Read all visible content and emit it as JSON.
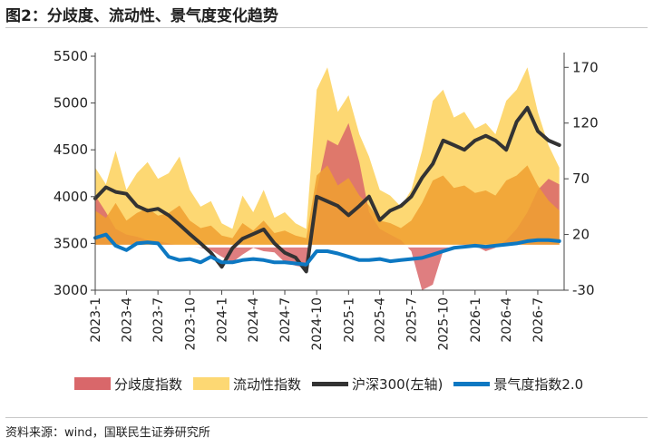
{
  "title": "图2：分歧度、流动性、景气度变化趋势",
  "source": "资料来源：wind，国联民生证券研究所",
  "colors": {
    "divergence": "#d9676a",
    "divergence_high": "#e8a0a3",
    "liquidity": "#fdd873",
    "liquidity_inner": "#f0a030",
    "hs300": "#333333",
    "prosperity": "#0d78c2"
  },
  "chart_data": {
    "type": "area",
    "x_tick_labels": [
      "2023-1",
      "2023-4",
      "2023-7",
      "2023-10",
      "2024-1",
      "2024-4",
      "2024-7",
      "2024-10",
      "2025-1",
      "2025-4",
      "2025-7",
      "2025-10",
      "2026-1",
      "2026-4",
      "2026-7"
    ],
    "x_range": [
      "2023-01-01",
      "2026-09-15"
    ],
    "y_left": {
      "ticks": [
        3000,
        3500,
        4000,
        4500,
        5000,
        5500
      ],
      "range": [
        3000,
        5500
      ]
    },
    "y_right": {
      "ticks": [
        -30,
        20,
        70,
        120,
        170
      ],
      "range": [
        -30,
        180
      ],
      "baseline": 10
    },
    "series": [
      {
        "name": "分歧度指数",
        "kind": "area",
        "axis": "right",
        "dates": [
          "2023-01",
          "2023-02",
          "2023-03",
          "2023-04",
          "2023-05",
          "2023-06",
          "2023-07",
          "2023-08",
          "2023-09",
          "2023-10",
          "2023-11",
          "2023-12",
          "2024-01",
          "2024-02",
          "2024-03",
          "2024-04",
          "2024-05",
          "2024-06",
          "2024-07",
          "2024-08",
          "2024-09",
          "2024-10",
          "2024-11",
          "2024-12",
          "2025-01",
          "2025-02",
          "2025-03",
          "2025-04",
          "2025-05",
          "2025-06",
          "2025-07",
          "2025-08",
          "2025-09",
          "2025-10",
          "2025-11",
          "2025-12",
          "2026-01",
          "2026-02",
          "2026-03",
          "2026-04",
          "2026-05",
          "2026-06",
          "2026-07",
          "2026-08",
          "2026-09"
        ],
        "values": [
          55,
          40,
          25,
          20,
          18,
          15,
          14,
          12,
          10,
          9,
          8,
          6,
          0,
          -5,
          2,
          8,
          5,
          4,
          -5,
          -8,
          -10,
          60,
          105,
          100,
          120,
          85,
          40,
          25,
          20,
          15,
          5,
          -30,
          -25,
          5,
          10,
          12,
          10,
          5,
          8,
          15,
          25,
          40,
          60,
          70,
          65
        ]
      },
      {
        "name": "流动性指数",
        "kind": "area",
        "axis": "right",
        "dates": [
          "2023-01",
          "2023-02",
          "2023-03",
          "2023-04",
          "2023-05",
          "2023-06",
          "2023-07",
          "2023-08",
          "2023-09",
          "2023-10",
          "2023-11",
          "2023-12",
          "2024-01",
          "2024-02",
          "2024-03",
          "2024-04",
          "2024-05",
          "2024-06",
          "2024-07",
          "2024-08",
          "2024-09",
          "2024-10",
          "2024-11",
          "2024-12",
          "2025-01",
          "2025-02",
          "2025-03",
          "2025-04",
          "2025-05",
          "2025-06",
          "2025-07",
          "2025-08",
          "2025-09",
          "2025-10",
          "2025-11",
          "2025-12",
          "2026-01",
          "2026-02",
          "2026-03",
          "2026-04",
          "2026-05",
          "2026-06",
          "2026-07",
          "2026-08",
          "2026-09"
        ],
        "values": [
          80,
          65,
          95,
          60,
          75,
          85,
          70,
          75,
          90,
          60,
          45,
          50,
          30,
          25,
          55,
          40,
          60,
          35,
          40,
          30,
          25,
          150,
          170,
          130,
          145,
          110,
          90,
          60,
          55,
          45,
          60,
          95,
          140,
          150,
          125,
          130,
          115,
          120,
          110,
          140,
          150,
          170,
          130,
          100,
          80
        ]
      },
      {
        "name": "沪深300(左轴)",
        "kind": "line",
        "axis": "left",
        "dates": [
          "2023-01",
          "2023-02",
          "2023-03",
          "2023-04",
          "2023-05",
          "2023-06",
          "2023-07",
          "2023-08",
          "2023-09",
          "2023-10",
          "2023-11",
          "2023-12",
          "2024-01",
          "2024-02",
          "2024-03",
          "2024-04",
          "2024-05",
          "2024-06",
          "2024-07",
          "2024-08",
          "2024-09",
          "2024-10",
          "2024-11",
          "2024-12",
          "2025-01",
          "2025-02",
          "2025-03",
          "2025-04",
          "2025-05",
          "2025-06",
          "2025-07",
          "2025-08",
          "2025-09",
          "2025-10",
          "2025-11",
          "2025-12",
          "2026-01",
          "2026-02",
          "2026-03",
          "2026-04",
          "2026-05",
          "2026-06",
          "2026-07",
          "2026-08",
          "2026-09"
        ],
        "values": [
          3980,
          4100,
          4050,
          4030,
          3900,
          3850,
          3870,
          3800,
          3700,
          3600,
          3500,
          3400,
          3250,
          3450,
          3550,
          3600,
          3650,
          3500,
          3400,
          3350,
          3200,
          4000,
          3950,
          3900,
          3800,
          3900,
          4000,
          3750,
          3850,
          3900,
          4000,
          4200,
          4350,
          4600,
          4550,
          4500,
          4600,
          4650,
          4600,
          4500,
          4800,
          4950,
          4700,
          4600,
          4550
        ]
      },
      {
        "name": "景气度指数2.0",
        "kind": "line",
        "axis": "right",
        "dates": [
          "2023-01",
          "2023-02",
          "2023-03",
          "2023-04",
          "2023-05",
          "2023-06",
          "2023-07",
          "2023-08",
          "2023-09",
          "2023-10",
          "2023-11",
          "2023-12",
          "2024-01",
          "2024-02",
          "2024-03",
          "2024-04",
          "2024-05",
          "2024-06",
          "2024-07",
          "2024-08",
          "2024-09",
          "2024-10",
          "2024-11",
          "2024-12",
          "2025-01",
          "2025-02",
          "2025-03",
          "2025-04",
          "2025-05",
          "2025-06",
          "2025-07",
          "2025-08",
          "2025-09",
          "2025-10",
          "2025-11",
          "2025-12",
          "2026-01",
          "2026-02",
          "2026-03",
          "2026-04",
          "2026-05",
          "2026-06",
          "2026-07",
          "2026-08",
          "2026-09"
        ],
        "values": [
          17,
          20,
          10,
          6,
          12,
          13,
          12,
          0,
          -3,
          -2,
          -5,
          0,
          -5,
          -5,
          -3,
          -2,
          -3,
          -5,
          -5,
          -6,
          -7,
          5,
          5,
          3,
          0,
          -3,
          -3,
          -2,
          -4,
          -3,
          -2,
          -1,
          2,
          5,
          8,
          9,
          10,
          9,
          10,
          11,
          12,
          14,
          15,
          15,
          14
        ]
      }
    ]
  }
}
